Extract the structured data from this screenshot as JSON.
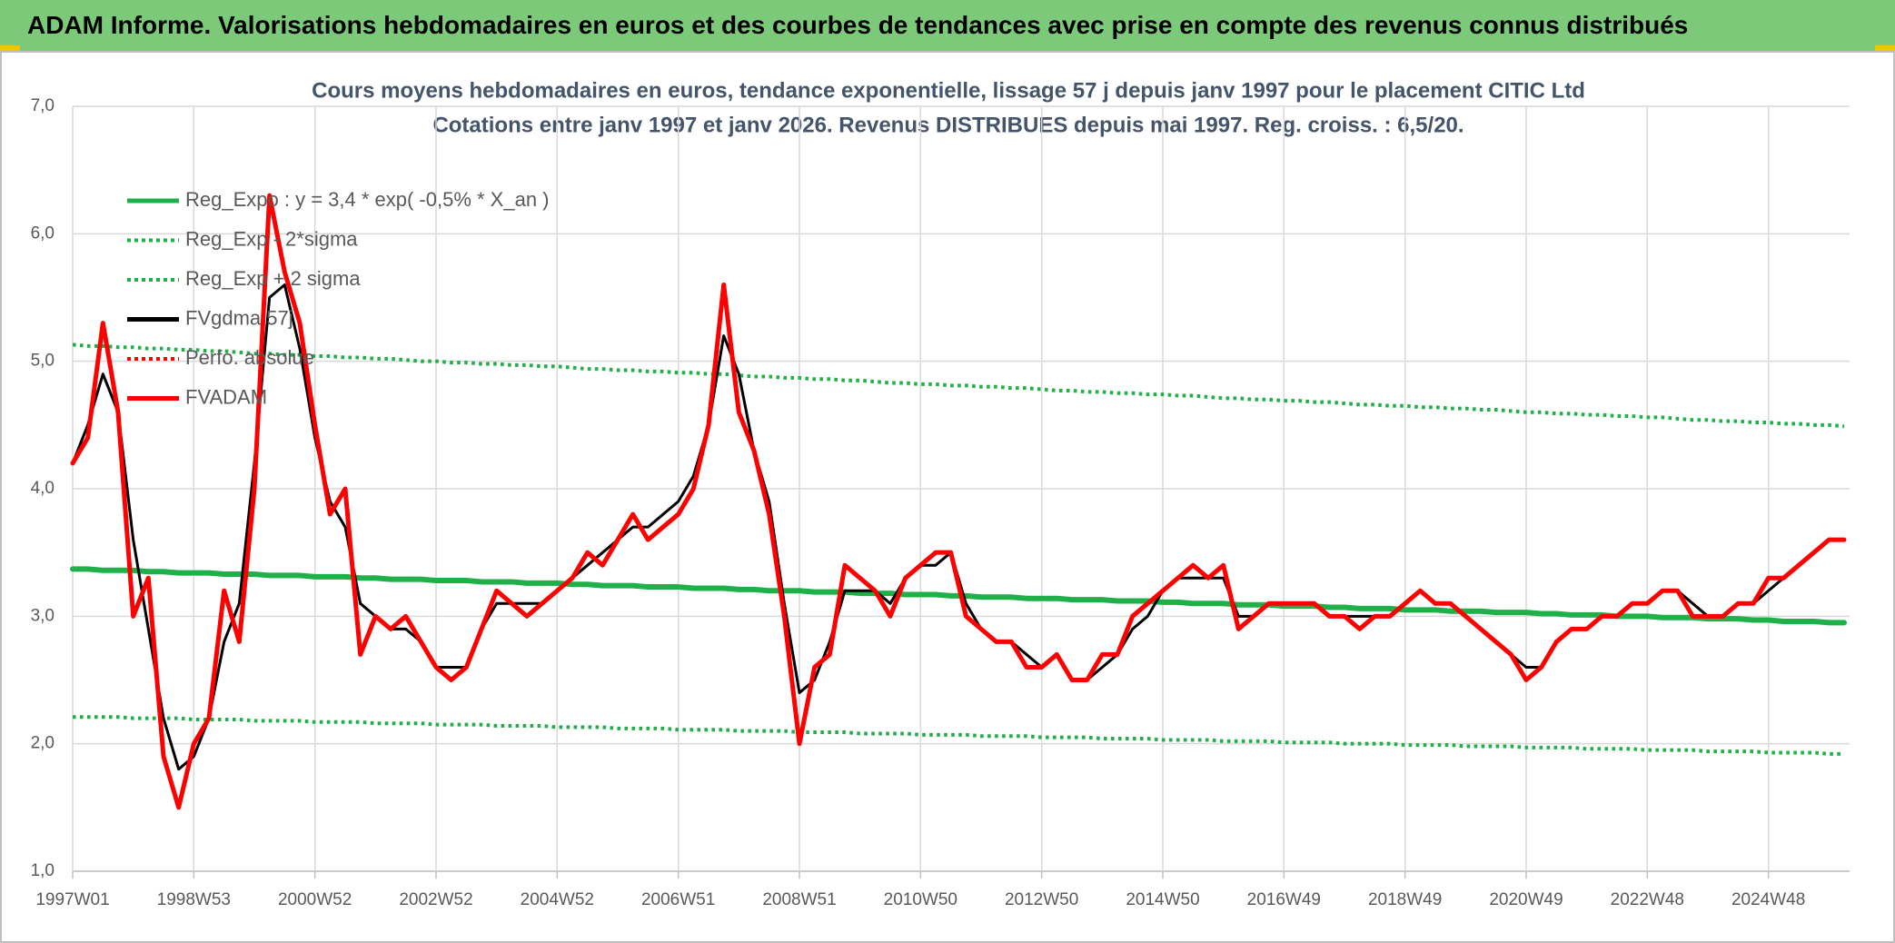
{
  "header": {
    "title": "ADAM Informe. Valorisations hebdomadaires en euros et des courbes de tendances avec prise en compte des revenus connus distribués"
  },
  "chart_data": {
    "type": "line",
    "title": "Cours moyens hebdomadaires en euros, tendance exponentielle, lissage 57 j depuis janv 1997 pour le placement CITIC Ltd",
    "subtitle": "Cotations entre janv 1997 et janv 2026. Revenus DISTRIBUES depuis mai 1997. Reg. croiss. : 6,5/20.",
    "categories": [
      "1997W01",
      null,
      null,
      null,
      null,
      null,
      null,
      null,
      "1998W53",
      null,
      null,
      null,
      null,
      null,
      null,
      null,
      "2000W52",
      null,
      null,
      null,
      null,
      null,
      null,
      null,
      "2002W52",
      null,
      null,
      null,
      null,
      null,
      null,
      null,
      "2004W52",
      null,
      null,
      null,
      null,
      null,
      null,
      null,
      "2006W51",
      null,
      null,
      null,
      null,
      null,
      null,
      null,
      "2008W51",
      null,
      null,
      null,
      null,
      null,
      null,
      null,
      "2010W50",
      null,
      null,
      null,
      null,
      null,
      null,
      null,
      "2012W50",
      null,
      null,
      null,
      null,
      null,
      null,
      null,
      "2014W50",
      null,
      null,
      null,
      null,
      null,
      null,
      null,
      "2016W49",
      null,
      null,
      null,
      null,
      null,
      null,
      null,
      "2018W49",
      null,
      null,
      null,
      null,
      null,
      null,
      null,
      "2020W49",
      null,
      null,
      null,
      null,
      null,
      null,
      null,
      "2022W48",
      null,
      null,
      null,
      null,
      null,
      null,
      null,
      "2024W48",
      null,
      null,
      null,
      null,
      null
    ],
    "ylim": [
      1,
      7
    ],
    "yticks": [
      {
        "value": 1,
        "label": "1,0"
      },
      {
        "value": 2,
        "label": "2,0"
      },
      {
        "value": 3,
        "label": "3,0"
      },
      {
        "value": 4,
        "label": "4,0"
      },
      {
        "value": 5,
        "label": "5,0"
      },
      {
        "value": 6,
        "label": "6,0"
      },
      {
        "value": 7,
        "label": "7,0"
      }
    ],
    "grid": true,
    "legend": "top-left",
    "series": [
      {
        "name": "Reg_Expo : y = 3,4 * exp( -0,5% *  X_an )",
        "color": "#1fb04a",
        "style": "solid",
        "width": 6,
        "values": [
          3.37,
          3.37,
          3.36,
          3.36,
          3.36,
          3.35,
          3.35,
          3.34,
          3.34,
          3.34,
          3.33,
          3.33,
          3.33,
          3.32,
          3.32,
          3.32,
          3.31,
          3.31,
          3.31,
          3.3,
          3.3,
          3.29,
          3.29,
          3.29,
          3.28,
          3.28,
          3.28,
          3.27,
          3.27,
          3.27,
          3.26,
          3.26,
          3.26,
          3.25,
          3.25,
          3.24,
          3.24,
          3.24,
          3.23,
          3.23,
          3.23,
          3.22,
          3.22,
          3.22,
          3.21,
          3.21,
          3.2,
          3.2,
          3.2,
          3.19,
          3.19,
          3.19,
          3.18,
          3.18,
          3.18,
          3.17,
          3.17,
          3.17,
          3.16,
          3.16,
          3.15,
          3.15,
          3.15,
          3.14,
          3.14,
          3.14,
          3.13,
          3.13,
          3.13,
          3.12,
          3.12,
          3.12,
          3.11,
          3.11,
          3.1,
          3.1,
          3.1,
          3.09,
          3.09,
          3.09,
          3.08,
          3.08,
          3.08,
          3.07,
          3.07,
          3.06,
          3.06,
          3.06,
          3.05,
          3.05,
          3.05,
          3.04,
          3.04,
          3.04,
          3.03,
          3.03,
          3.03,
          3.02,
          3.02,
          3.01,
          3.01,
          3.01,
          3.0,
          3.0,
          3.0,
          2.99,
          2.99,
          2.99,
          2.98,
          2.98,
          2.98,
          2.97,
          2.97,
          2.96,
          2.96,
          2.96,
          2.95,
          2.95
        ]
      },
      {
        "name": "Reg_Exp - 2*sigma",
        "color": "#1fb04a",
        "style": "dotted",
        "width": 4,
        "values": [
          2.21,
          2.21,
          2.21,
          2.21,
          2.2,
          2.2,
          2.2,
          2.2,
          2.19,
          2.19,
          2.19,
          2.19,
          2.18,
          2.18,
          2.18,
          2.18,
          2.17,
          2.17,
          2.17,
          2.17,
          2.16,
          2.16,
          2.16,
          2.16,
          2.15,
          2.15,
          2.15,
          2.15,
          2.14,
          2.14,
          2.14,
          2.14,
          2.13,
          2.13,
          2.13,
          2.13,
          2.12,
          2.12,
          2.12,
          2.12,
          2.11,
          2.11,
          2.11,
          2.11,
          2.1,
          2.1,
          2.1,
          2.1,
          2.09,
          2.09,
          2.09,
          2.09,
          2.08,
          2.08,
          2.08,
          2.08,
          2.07,
          2.07,
          2.07,
          2.07,
          2.06,
          2.06,
          2.06,
          2.06,
          2.05,
          2.05,
          2.05,
          2.05,
          2.04,
          2.04,
          2.04,
          2.04,
          2.03,
          2.03,
          2.03,
          2.03,
          2.02,
          2.02,
          2.02,
          2.02,
          2.01,
          2.01,
          2.01,
          2.01,
          2.0,
          2.0,
          2.0,
          2.0,
          1.99,
          1.99,
          1.99,
          1.99,
          1.98,
          1.98,
          1.98,
          1.98,
          1.97,
          1.97,
          1.97,
          1.97,
          1.96,
          1.96,
          1.96,
          1.96,
          1.95,
          1.95,
          1.95,
          1.95,
          1.94,
          1.94,
          1.94,
          1.94,
          1.93,
          1.93,
          1.93,
          1.93,
          1.92,
          1.92
        ]
      },
      {
        "name": "Reg_Exp + 2 sigma",
        "color": "#1fb04a",
        "style": "dotted",
        "width": 4,
        "values": [
          5.13,
          5.12,
          5.12,
          5.11,
          5.11,
          5.1,
          5.1,
          5.09,
          5.09,
          5.08,
          5.08,
          5.07,
          5.06,
          5.06,
          5.05,
          5.05,
          5.04,
          5.04,
          5.03,
          5.03,
          5.02,
          5.02,
          5.01,
          5.0,
          5.0,
          4.99,
          4.99,
          4.98,
          4.98,
          4.97,
          4.97,
          4.96,
          4.96,
          4.95,
          4.94,
          4.94,
          4.93,
          4.93,
          4.92,
          4.92,
          4.91,
          4.91,
          4.9,
          4.9,
          4.89,
          4.88,
          4.88,
          4.87,
          4.87,
          4.86,
          4.86,
          4.85,
          4.85,
          4.84,
          4.83,
          4.83,
          4.82,
          4.82,
          4.81,
          4.81,
          4.8,
          4.8,
          4.79,
          4.79,
          4.78,
          4.77,
          4.77,
          4.76,
          4.76,
          4.75,
          4.75,
          4.74,
          4.74,
          4.73,
          4.73,
          4.72,
          4.71,
          4.71,
          4.7,
          4.7,
          4.69,
          4.69,
          4.68,
          4.68,
          4.67,
          4.66,
          4.66,
          4.65,
          4.65,
          4.64,
          4.64,
          4.63,
          4.63,
          4.62,
          4.62,
          4.61,
          4.6,
          4.6,
          4.59,
          4.59,
          4.58,
          4.58,
          4.57,
          4.57,
          4.56,
          4.56,
          4.55,
          4.54,
          4.54,
          4.53,
          4.53,
          4.52,
          4.52,
          4.51,
          4.51,
          4.5,
          4.5,
          4.49
        ]
      },
      {
        "name": "FVgdma 57j",
        "color": "#000000",
        "style": "solid",
        "width": 3,
        "values": [
          4.2,
          4.5,
          4.9,
          4.6,
          3.6,
          2.9,
          2.2,
          1.8,
          1.9,
          2.2,
          2.8,
          3.1,
          4.2,
          5.5,
          5.6,
          5.1,
          4.4,
          3.9,
          3.7,
          3.1,
          3.0,
          2.9,
          2.9,
          2.8,
          2.6,
          2.6,
          2.6,
          2.9,
          3.1,
          3.1,
          3.1,
          3.1,
          3.2,
          3.3,
          3.4,
          3.5,
          3.6,
          3.7,
          3.7,
          3.8,
          3.9,
          4.1,
          4.5,
          5.2,
          4.9,
          4.3,
          3.9,
          3.1,
          2.4,
          2.5,
          2.8,
          3.2,
          3.2,
          3.2,
          3.1,
          3.3,
          3.4,
          3.4,
          3.5,
          3.1,
          2.9,
          2.8,
          2.8,
          2.7,
          2.6,
          2.7,
          2.5,
          2.5,
          2.6,
          2.7,
          2.9,
          3.0,
          3.2,
          3.3,
          3.3,
          3.3,
          3.3,
          3.0,
          3.0,
          3.1,
          3.1,
          3.1,
          3.1,
          3.0,
          3.0,
          3.0,
          3.0,
          3.0,
          3.1,
          3.2,
          3.1,
          3.1,
          3.0,
          2.9,
          2.8,
          2.7,
          2.6,
          2.6,
          2.8,
          2.9,
          2.9,
          3.0,
          3.0,
          3.1,
          3.1,
          3.2,
          3.2,
          3.1,
          3.0,
          3.0,
          3.1,
          3.1,
          3.2,
          3.3,
          3.4,
          3.5,
          3.6,
          3.6
        ]
      },
      {
        "name": "Perfo. absolue",
        "color": "#ff0000",
        "style": "dotted",
        "width": 2,
        "values": [
          4.2,
          4.4,
          5.3,
          4.6,
          3.0,
          3.3,
          1.9,
          1.5,
          2.0,
          2.2,
          3.2,
          2.8,
          4.0,
          6.3,
          5.7,
          5.3,
          4.5,
          3.8,
          4.0,
          2.7,
          3.0,
          2.9,
          3.0,
          2.8,
          2.6,
          2.5,
          2.6,
          2.9,
          3.2,
          3.1,
          3.0,
          3.1,
          3.2,
          3.3,
          3.5,
          3.4,
          3.6,
          3.8,
          3.6,
          3.7,
          3.8,
          4.0,
          4.5,
          5.6,
          4.6,
          4.3,
          3.8,
          3.0,
          2.0,
          2.6,
          2.7,
          3.4,
          3.3,
          3.2,
          3.0,
          3.3,
          3.4,
          3.5,
          3.5,
          3.0,
          2.9,
          2.8,
          2.8,
          2.6,
          2.6,
          2.7,
          2.5,
          2.5,
          2.7,
          2.7,
          3.0,
          3.1,
          3.2,
          3.3,
          3.4,
          3.3,
          3.4,
          2.9,
          3.0,
          3.1,
          3.1,
          3.1,
          3.1,
          3.0,
          3.0,
          2.9,
          3.0,
          3.0,
          3.1,
          3.2,
          3.1,
          3.1,
          3.0,
          2.9,
          2.8,
          2.7,
          2.5,
          2.6,
          2.8,
          2.9,
          2.9,
          3.0,
          3.0,
          3.1,
          3.1,
          3.2,
          3.2,
          3.0,
          3.0,
          3.0,
          3.1,
          3.1,
          3.3,
          3.3,
          3.4,
          3.5,
          3.6,
          3.6
        ]
      },
      {
        "name": "FVADAM",
        "color": "#ff0000",
        "style": "solid",
        "width": 5,
        "values": [
          4.2,
          4.4,
          5.3,
          4.6,
          3.0,
          3.3,
          1.9,
          1.5,
          2.0,
          2.2,
          3.2,
          2.8,
          4.0,
          6.3,
          5.7,
          5.3,
          4.5,
          3.8,
          4.0,
          2.7,
          3.0,
          2.9,
          3.0,
          2.8,
          2.6,
          2.5,
          2.6,
          2.9,
          3.2,
          3.1,
          3.0,
          3.1,
          3.2,
          3.3,
          3.5,
          3.4,
          3.6,
          3.8,
          3.6,
          3.7,
          3.8,
          4.0,
          4.5,
          5.6,
          4.6,
          4.3,
          3.8,
          3.0,
          2.0,
          2.6,
          2.7,
          3.4,
          3.3,
          3.2,
          3.0,
          3.3,
          3.4,
          3.5,
          3.5,
          3.0,
          2.9,
          2.8,
          2.8,
          2.6,
          2.6,
          2.7,
          2.5,
          2.5,
          2.7,
          2.7,
          3.0,
          3.1,
          3.2,
          3.3,
          3.4,
          3.3,
          3.4,
          2.9,
          3.0,
          3.1,
          3.1,
          3.1,
          3.1,
          3.0,
          3.0,
          2.9,
          3.0,
          3.0,
          3.1,
          3.2,
          3.1,
          3.1,
          3.0,
          2.9,
          2.8,
          2.7,
          2.5,
          2.6,
          2.8,
          2.9,
          2.9,
          3.0,
          3.0,
          3.1,
          3.1,
          3.2,
          3.2,
          3.0,
          3.0,
          3.0,
          3.1,
          3.1,
          3.3,
          3.3,
          3.4,
          3.5,
          3.6,
          3.6
        ]
      }
    ]
  }
}
